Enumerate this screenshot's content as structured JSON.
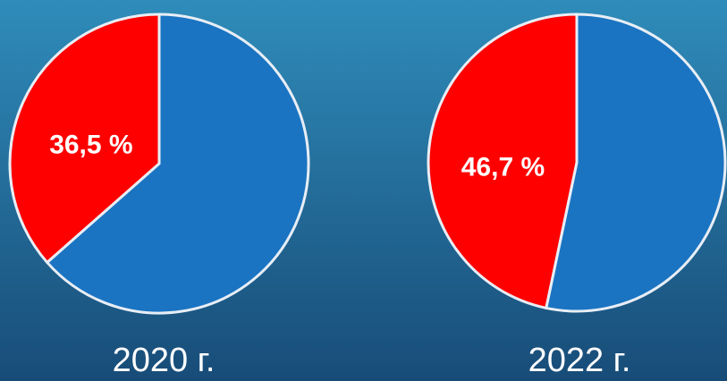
{
  "chart_data": [
    {
      "type": "pie",
      "title": "2020 г.",
      "categories": [
        null,
        null
      ],
      "values": [
        36.5,
        63.5
      ],
      "value_labels": [
        "36,5 %",
        null
      ],
      "colors": [
        "#ff0000",
        "#1a74c2"
      ]
    },
    {
      "type": "pie",
      "title": "2022 г.",
      "categories": [
        null,
        null
      ],
      "values": [
        46.7,
        53.3
      ],
      "value_labels": [
        "46,7 %",
        null
      ],
      "colors": [
        "#ff0000",
        "#1a74c2"
      ]
    }
  ]
}
